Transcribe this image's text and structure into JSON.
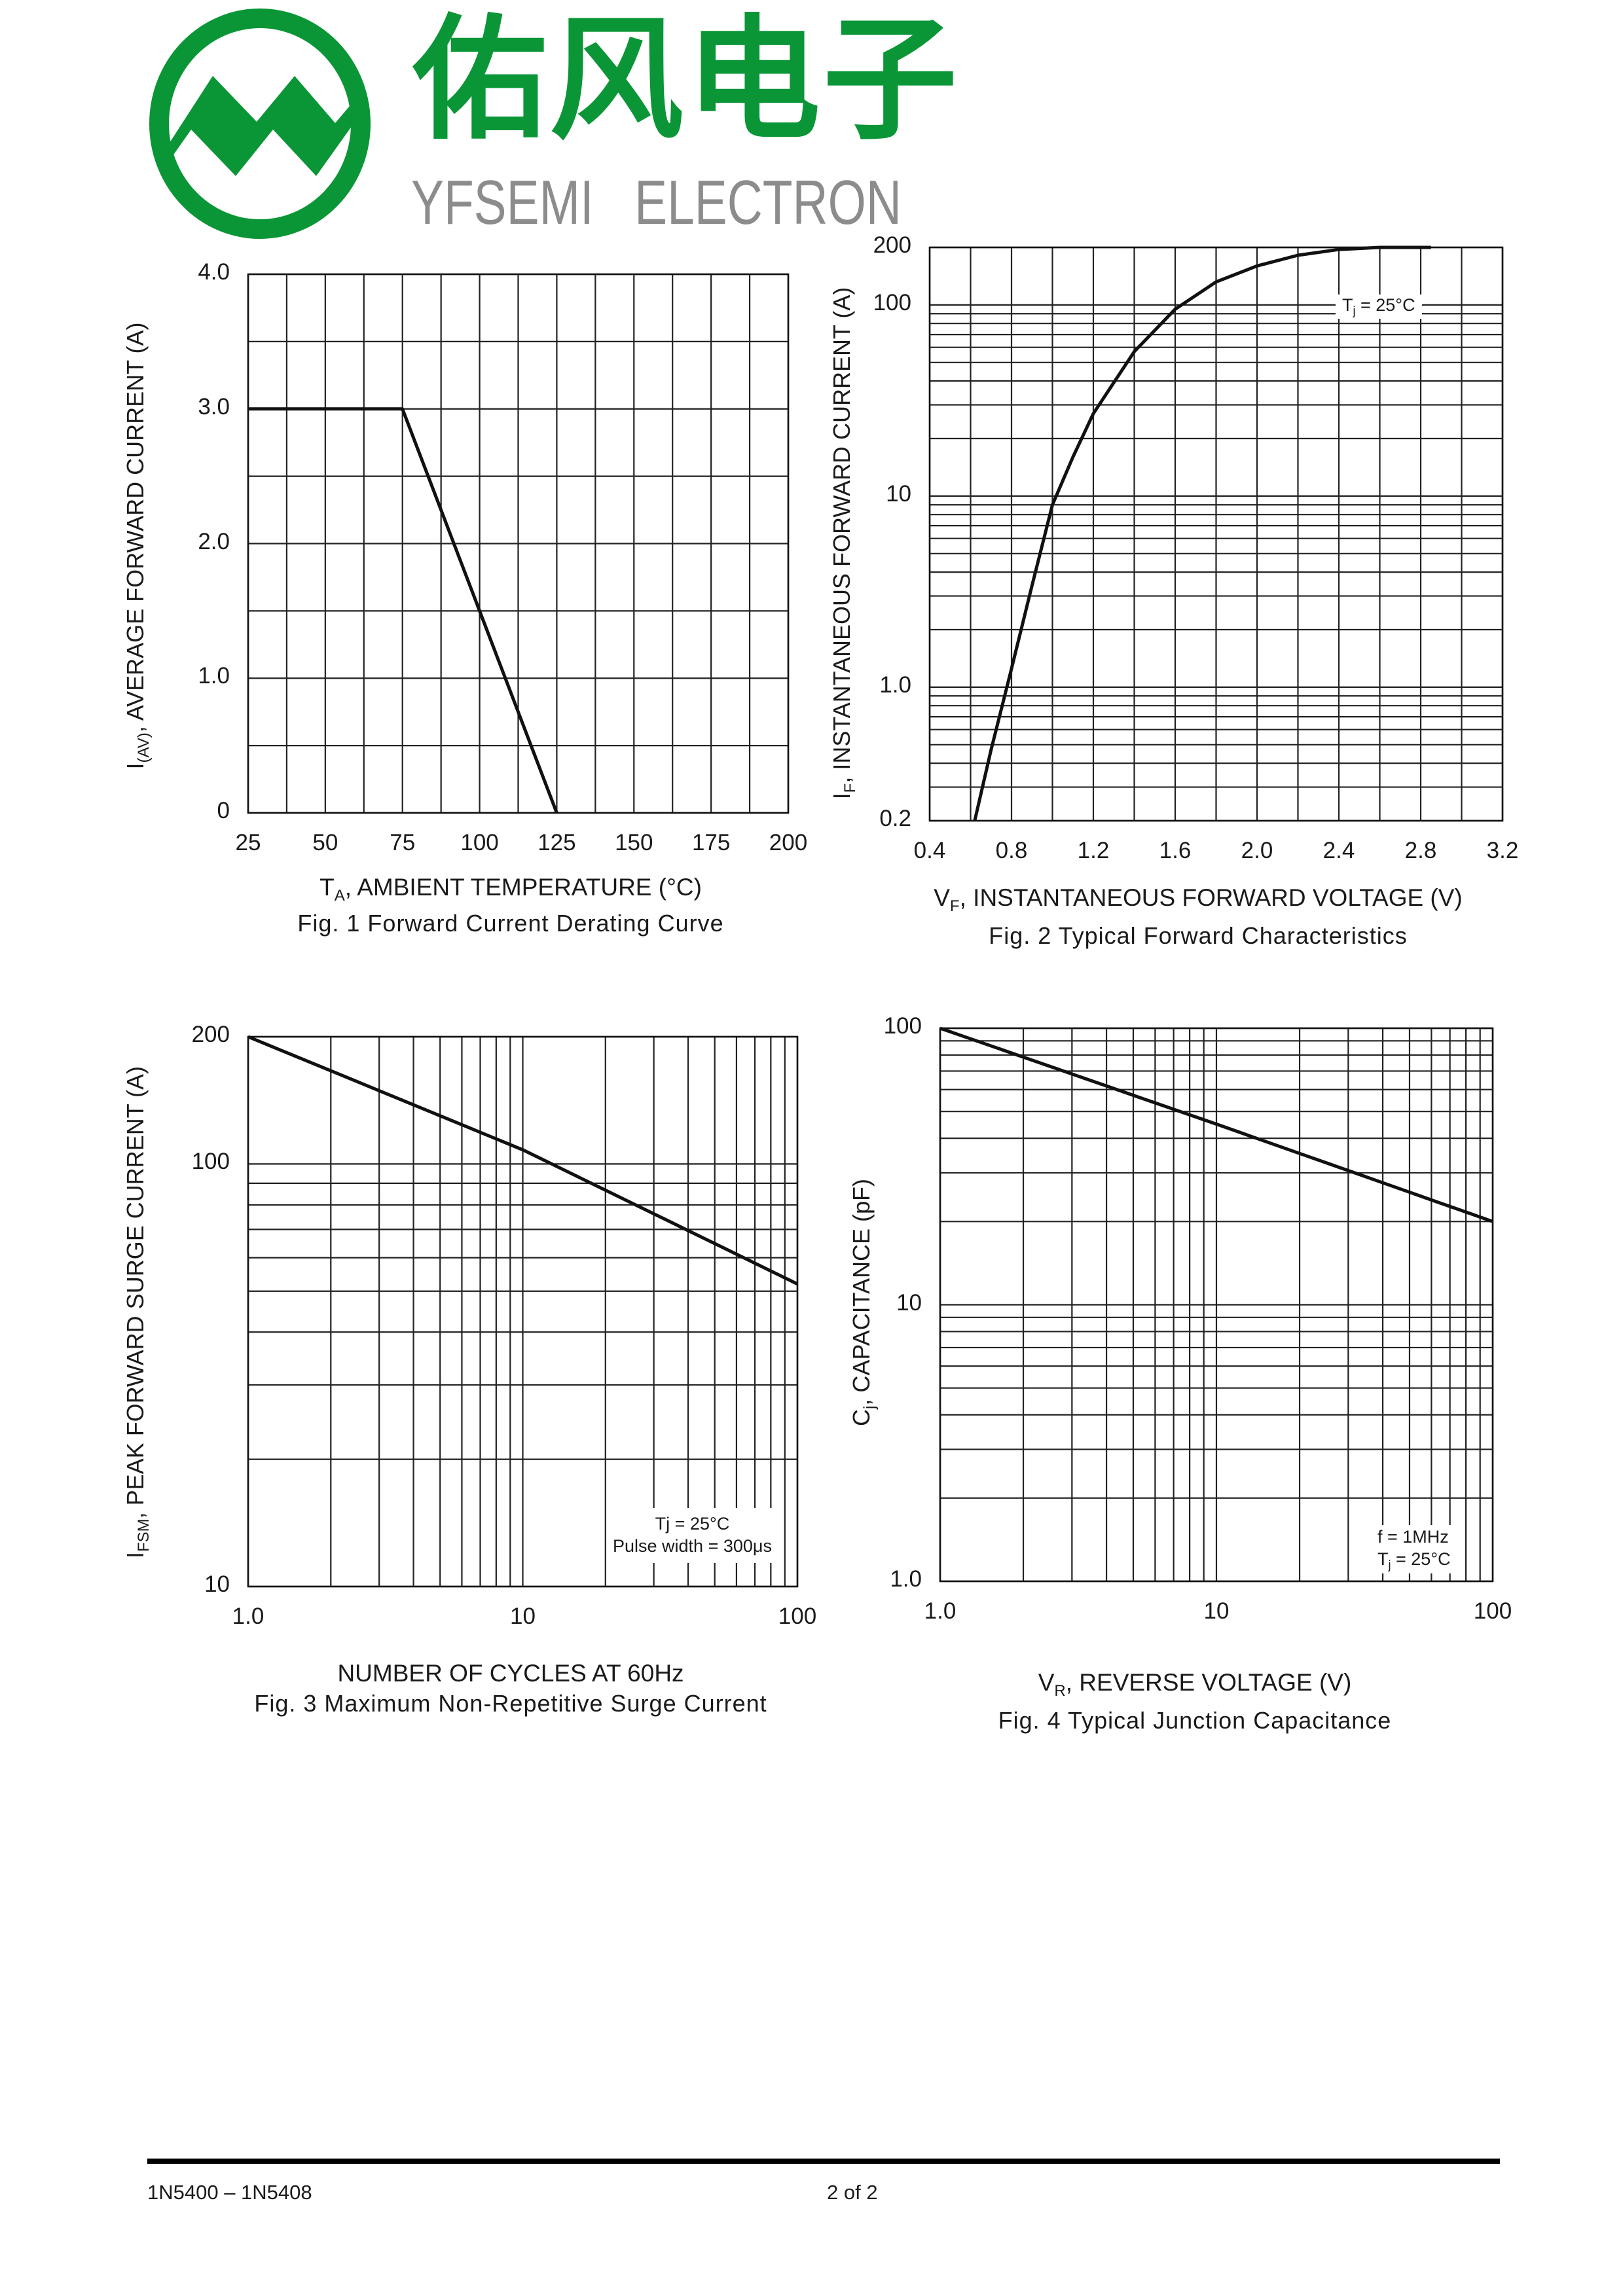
{
  "logo": {
    "cn": "佑风电子",
    "en": "YFSEMI   ELECTRON",
    "color": "#0a9636",
    "text_gray": "#8c8c8c"
  },
  "footer": {
    "part": "1N5400 – 1N5408",
    "page": "2 of 2"
  },
  "chart_data": [
    {
      "type": "line",
      "title": "Fig. 1  Forward Current Derating Curve",
      "xlabel": {
        "main": "T",
        "sub": "A",
        "rest": ", AMBIENT TEMPERATURE (°C)"
      },
      "ylabel": {
        "main": "I",
        "sub": "(AV)",
        "rest": ", AVERAGE FORWARD CURRENT (A)"
      },
      "xscale": "linear",
      "yscale": "linear",
      "xlim": [
        25,
        200
      ],
      "ylim": [
        0,
        4.0
      ],
      "x_grid_step": 12.5,
      "y_grid_step": 0.5,
      "xticks": [
        [
          25,
          "25"
        ],
        [
          50,
          "50"
        ],
        [
          75,
          "75"
        ],
        [
          100,
          "100"
        ],
        [
          125,
          "125"
        ],
        [
          150,
          "150"
        ],
        [
          175,
          "175"
        ],
        [
          200,
          "200"
        ]
      ],
      "yticks": [
        [
          0,
          "0"
        ],
        [
          1.0,
          "1.0"
        ],
        [
          2.0,
          "2.0"
        ],
        [
          3.0,
          "3.0"
        ],
        [
          4.0,
          "4.0"
        ]
      ],
      "grid": true,
      "series": [
        {
          "name": "derating",
          "points": [
            [
              25,
              3.0
            ],
            [
              75,
              3.0
            ],
            [
              125,
              0
            ]
          ]
        }
      ]
    },
    {
      "type": "line",
      "title": "Fig. 2  Typical Forward Characteristics",
      "xlabel": {
        "main": "V",
        "sub": "F",
        "rest": ", INSTANTANEOUS FORWARD VOLTAGE (V)"
      },
      "ylabel": {
        "main": "I",
        "sub": "F",
        "rest": ", INSTANTANEOUS FORWARD CURRENT (A)"
      },
      "xscale": "linear",
      "yscale": "log",
      "xlim": [
        0.4,
        3.2
      ],
      "ylim": [
        0.2,
        200
      ],
      "x_grid_step": 0.2,
      "xticks": [
        [
          0.4,
          "0.4"
        ],
        [
          0.8,
          "0.8"
        ],
        [
          1.2,
          "1.2"
        ],
        [
          1.6,
          "1.6"
        ],
        [
          2.0,
          "2.0"
        ],
        [
          2.4,
          "2.4"
        ],
        [
          2.8,
          "2.8"
        ],
        [
          3.2,
          "3.2"
        ]
      ],
      "yticks": [
        [
          0.2,
          "0.2"
        ],
        [
          1.0,
          "1.0"
        ],
        [
          10,
          "10"
        ],
        [
          100,
          "100"
        ],
        [
          200,
          "200"
        ]
      ],
      "grid": true,
      "annotation": {
        "main": "T",
        "sub": "j",
        "rest": " =  25°C"
      },
      "series": [
        {
          "name": "Tj=25C",
          "points": [
            [
              0.62,
              0.2
            ],
            [
              0.7,
              0.47
            ],
            [
              0.8,
              1.25
            ],
            [
              0.9,
              3.4
            ],
            [
              1.0,
              9
            ],
            [
              1.1,
              16
            ],
            [
              1.2,
              27
            ],
            [
              1.4,
              57
            ],
            [
              1.6,
              95
            ],
            [
              1.8,
              132
            ],
            [
              2.0,
              160
            ],
            [
              2.2,
              182
            ],
            [
              2.4,
              195
            ],
            [
              2.6,
              200
            ],
            [
              2.85,
              200
            ]
          ]
        }
      ]
    },
    {
      "type": "line",
      "title": "Fig. 3  Maximum Non-Repetitive Surge Current",
      "xlabel": {
        "main": "NUMBER OF CYCLES AT 60Hz",
        "sub": "",
        "rest": ""
      },
      "ylabel": {
        "main": "I",
        "sub": "FSM",
        "rest": ", PEAK FORWARD SURGE CURRENT (A)"
      },
      "xscale": "log",
      "yscale": "log",
      "xlim": [
        1,
        100
      ],
      "ylim": [
        10,
        200
      ],
      "xticks": [
        [
          1,
          "1.0"
        ],
        [
          10,
          "10"
        ],
        [
          100,
          "100"
        ]
      ],
      "yticks": [
        [
          10,
          "10"
        ],
        [
          100,
          "100"
        ],
        [
          200,
          "200"
        ]
      ],
      "grid": true,
      "annotation": {
        "line1": "Tj = 25°C",
        "line2": "Pulse width = 300μs"
      },
      "series": [
        {
          "name": "IFSM",
          "points": [
            [
              1,
              200
            ],
            [
              10,
              108
            ],
            [
              100,
              52
            ]
          ]
        }
      ]
    },
    {
      "type": "line",
      "title": "Fig. 4  Typical Junction Capacitance",
      "xlabel": {
        "main": "V",
        "sub": "R",
        "rest": ", REVERSE VOLTAGE (V)"
      },
      "ylabel": {
        "main": "C",
        "sub": "j",
        "rest": ", CAPACITANCE (pF)"
      },
      "xscale": "log",
      "yscale": "log",
      "xlim": [
        1,
        100
      ],
      "ylim": [
        1,
        100
      ],
      "xticks": [
        [
          1,
          "1.0"
        ],
        [
          10,
          "10"
        ],
        [
          100,
          "100"
        ]
      ],
      "yticks": [
        [
          1,
          "1.0"
        ],
        [
          10,
          "10"
        ],
        [
          100,
          "100"
        ]
      ],
      "grid": true,
      "annotation": {
        "line1": "f =  1MHz",
        "main": "T",
        "sub": "j",
        "rest": " =  25°C"
      },
      "series": [
        {
          "name": "Cj",
          "points": [
            [
              1,
              100
            ],
            [
              10,
              45
            ],
            [
              100,
              20
            ]
          ]
        }
      ]
    }
  ]
}
